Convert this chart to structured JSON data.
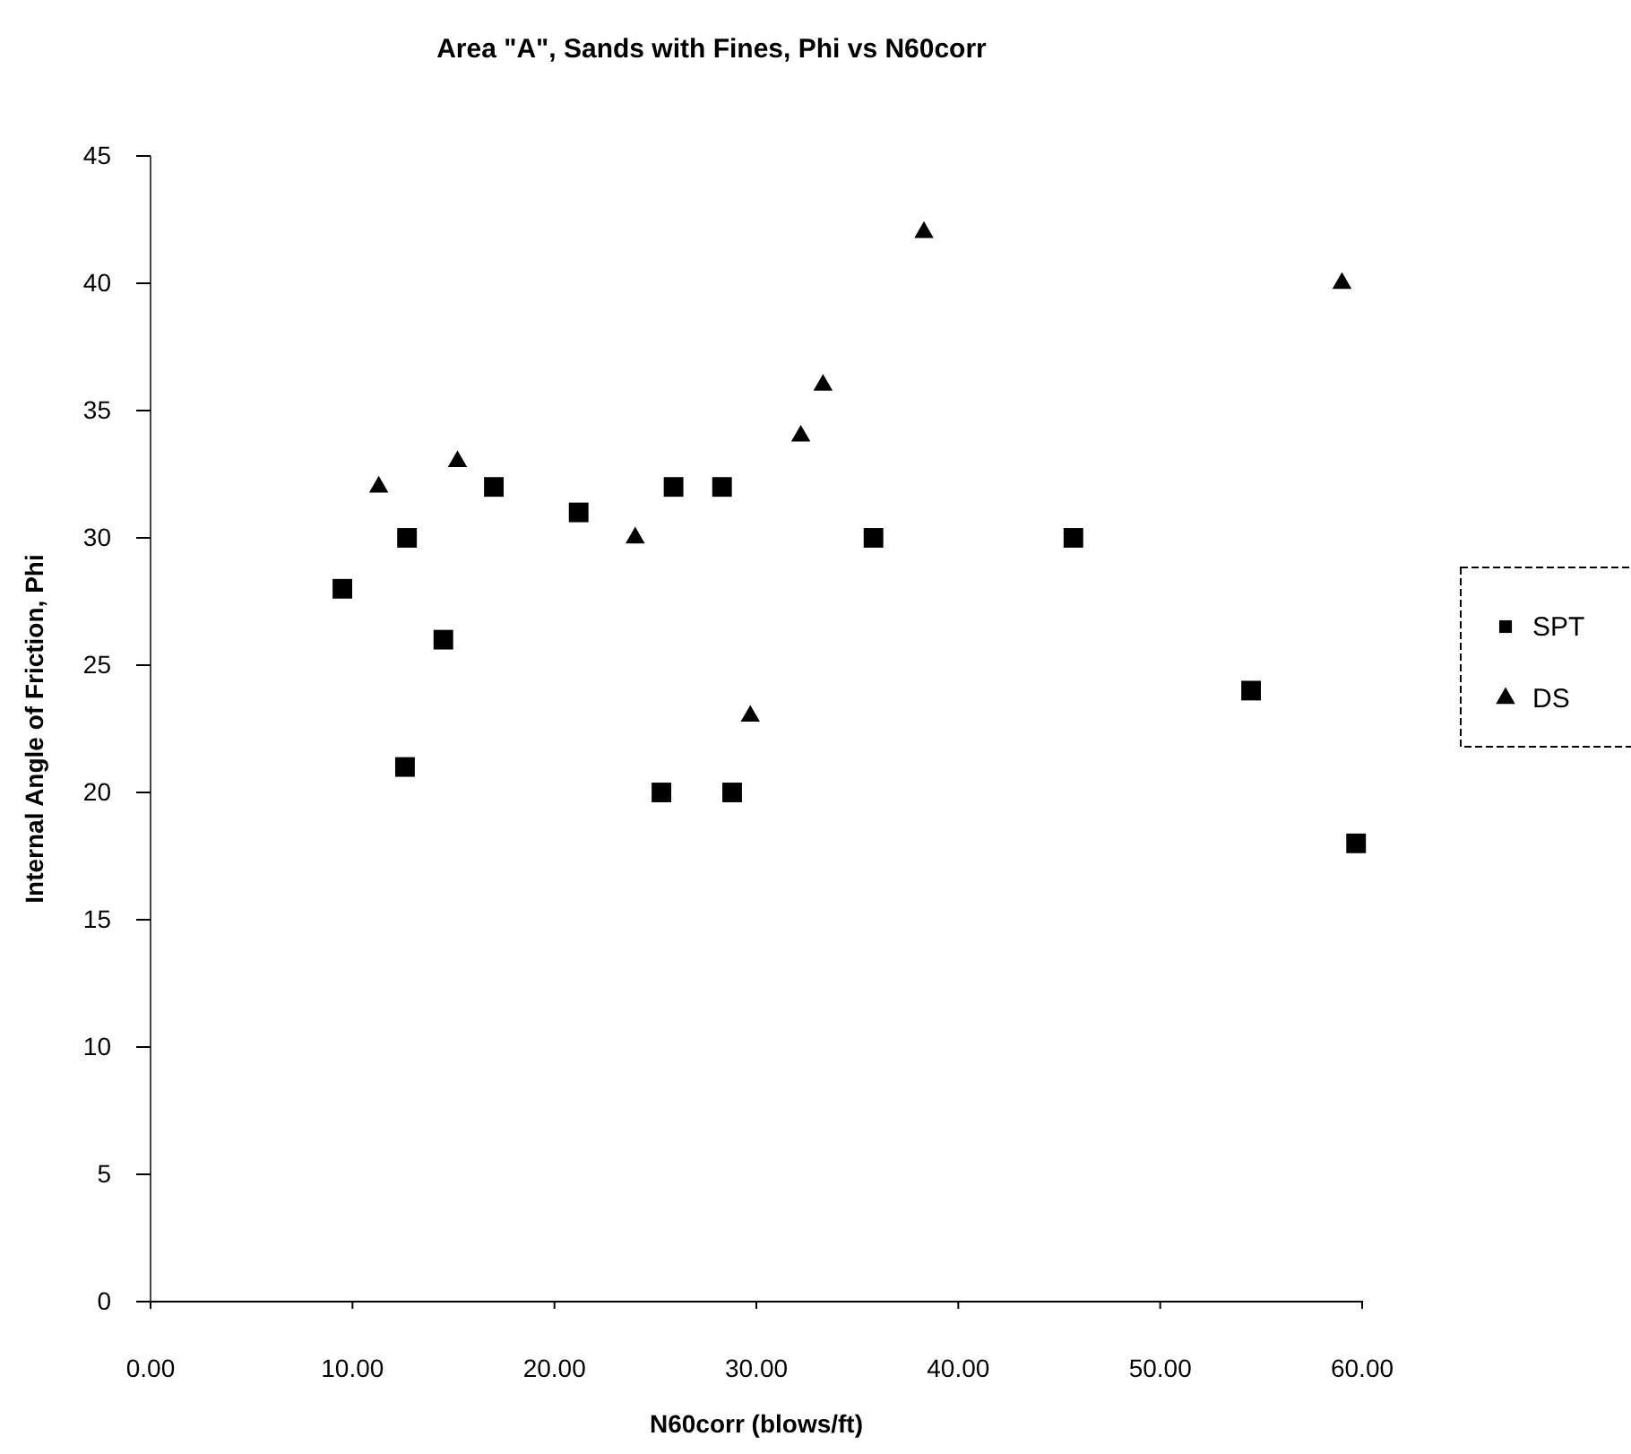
{
  "chart_data": {
    "type": "scatter",
    "title": "Area \"A\", Sands with Fines, Phi vs N60corr",
    "xlabel": "N60corr (blows/ft)",
    "ylabel": "Internal Angle of Friction, Phi",
    "xlim": [
      0,
      60
    ],
    "xticks": [
      {
        "value": 0,
        "label": "0.00"
      },
      {
        "value": 10,
        "label": "10.00"
      },
      {
        "value": 20,
        "label": "20.00"
      },
      {
        "value": 30,
        "label": "30.00"
      },
      {
        "value": 40,
        "label": "40.00"
      },
      {
        "value": 50,
        "label": "50.00"
      },
      {
        "value": 60,
        "label": "60.00"
      }
    ],
    "ylim": [
      0,
      45
    ],
    "yticks": [
      0,
      5,
      10,
      15,
      20,
      25,
      30,
      35,
      40,
      45
    ],
    "grid": false,
    "legend": "right",
    "series": [
      {
        "name": "SPT",
        "color": "#000000",
        "marker": "square",
        "x": [
          9.5,
          12.7,
          17.0,
          21.2,
          25.9,
          28.3,
          35.8,
          45.7,
          14.5,
          12.6,
          25.3,
          28.8,
          54.5,
          59.7
        ],
        "values": [
          28,
          30,
          32,
          31,
          32,
          32,
          30,
          30,
          26,
          21,
          20,
          20,
          24,
          18
        ]
      },
      {
        "name": "DS",
        "color": "#000000",
        "marker": "triangle",
        "x": [
          11.3,
          15.2,
          24.0,
          29.7,
          32.2,
          33.3,
          38.3,
          59.0
        ],
        "values": [
          32,
          33,
          30,
          23,
          34,
          36,
          42,
          40
        ]
      }
    ]
  }
}
